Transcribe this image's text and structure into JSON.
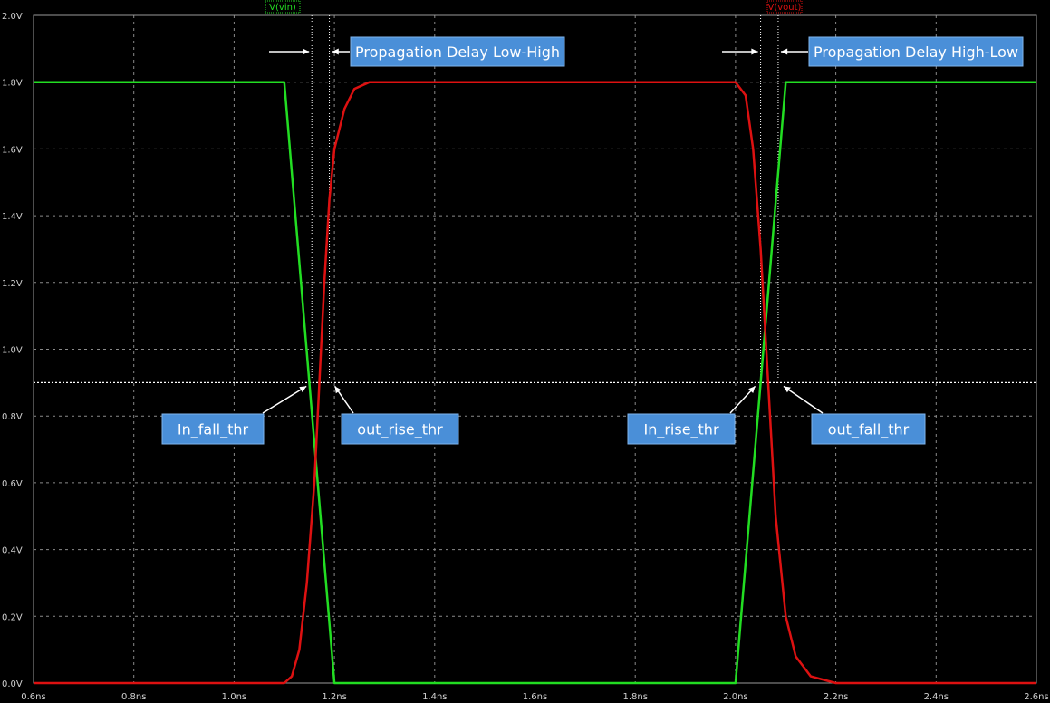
{
  "chart_data": {
    "type": "line",
    "xlim": [
      0.6,
      2.6
    ],
    "ylim": [
      0.0,
      2.0
    ],
    "x_ticks": [
      "0.6ns",
      "0.8ns",
      "1.0ns",
      "1.2ns",
      "1.4ns",
      "1.6ns",
      "1.8ns",
      "2.0ns",
      "2.2ns",
      "2.4ns",
      "2.6ns"
    ],
    "y_ticks": [
      "0.0V",
      "0.2V",
      "0.4V",
      "0.6V",
      "0.8V",
      "1.0V",
      "1.2V",
      "1.4V",
      "1.6V",
      "1.8V",
      "2.0V"
    ],
    "grid": true,
    "colors": {
      "background": "#000000",
      "grid": "#8a8a8a",
      "vin": "#22dd22",
      "vout": "#dd1111",
      "label_box": "#4a8fd8",
      "label_border": "#7fb4ec"
    },
    "series": [
      {
        "name": "V(vin)",
        "color": "#22dd22",
        "points": [
          [
            0.6,
            1.8
          ],
          [
            1.1,
            1.8
          ],
          [
            1.2,
            0.0
          ],
          [
            2.0,
            0.0
          ],
          [
            2.1,
            1.8
          ],
          [
            2.6,
            1.8
          ]
        ]
      },
      {
        "name": "V(vout)",
        "color": "#dd1111",
        "points": [
          [
            0.6,
            0.0
          ],
          [
            1.1,
            0.0
          ],
          [
            1.115,
            0.02
          ],
          [
            1.13,
            0.1
          ],
          [
            1.145,
            0.3
          ],
          [
            1.16,
            0.6
          ],
          [
            1.17,
            0.9
          ],
          [
            1.18,
            1.2
          ],
          [
            1.19,
            1.45
          ],
          [
            1.2,
            1.6
          ],
          [
            1.22,
            1.72
          ],
          [
            1.24,
            1.78
          ],
          [
            1.27,
            1.8
          ],
          [
            2.0,
            1.8
          ],
          [
            2.02,
            1.76
          ],
          [
            2.035,
            1.6
          ],
          [
            2.05,
            1.3
          ],
          [
            2.065,
            0.9
          ],
          [
            2.08,
            0.5
          ],
          [
            2.1,
            0.2
          ],
          [
            2.12,
            0.08
          ],
          [
            2.15,
            0.02
          ],
          [
            2.2,
            0.0
          ],
          [
            2.6,
            0.0
          ]
        ]
      }
    ],
    "threshold": 0.9,
    "markers": [
      1.155,
      1.19,
      2.05,
      2.085
    ],
    "annotations": [
      {
        "text": "Propagation Delay Low-High",
        "x": 1.19,
        "y": 1.9,
        "arrow_from": [
          1.19,
          1.9
        ],
        "arrow_to": [
          1.19,
          1.9
        ]
      },
      {
        "text": "Propagation Delay High-Low",
        "x": 2.09,
        "y": 1.9
      },
      {
        "text": "In_fall_thr",
        "x": 1.155,
        "y": 0.9
      },
      {
        "text": "out_rise_thr",
        "x": 1.19,
        "y": 0.9
      },
      {
        "text": "In_rise_thr",
        "x": 2.05,
        "y": 0.9
      },
      {
        "text": "out_fall_thr",
        "x": 2.085,
        "y": 0.9
      }
    ]
  }
}
